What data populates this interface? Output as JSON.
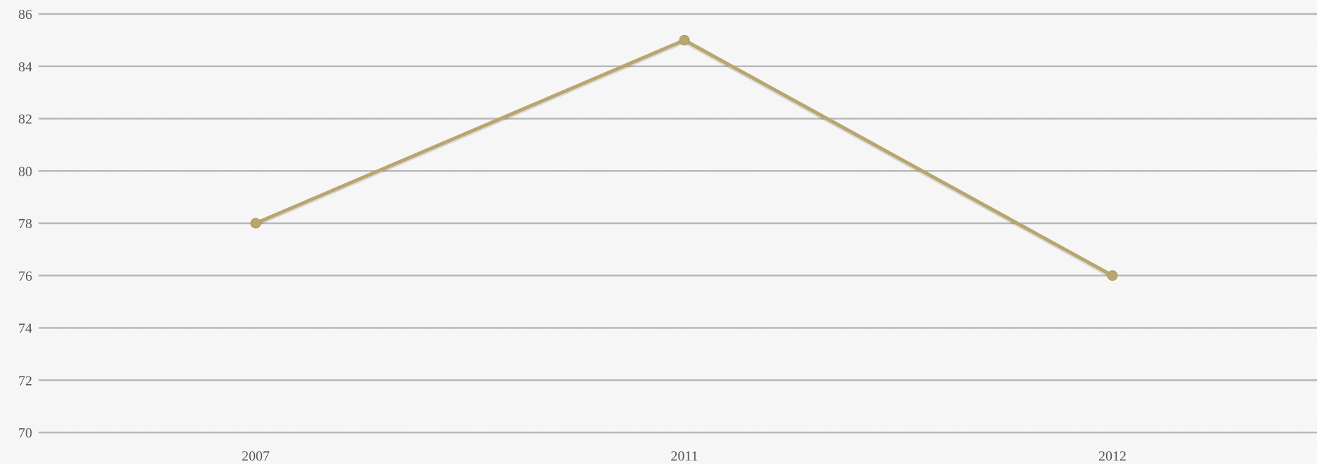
{
  "chart_data": {
    "type": "line",
    "title": "",
    "xlabel": "",
    "ylabel": "",
    "categories": [
      "2007",
      "2011",
      "2012"
    ],
    "series": [
      {
        "values": [
          78,
          85,
          76
        ],
        "color": "#b8a66e"
      }
    ],
    "ylim": [
      70,
      86
    ],
    "yticks": [
      70,
      72,
      74,
      76,
      78,
      80,
      82,
      84,
      86
    ],
    "grid": true,
    "legend": "none",
    "gridline_color": "#b8b8b8",
    "tick_label_color": "#555555"
  }
}
